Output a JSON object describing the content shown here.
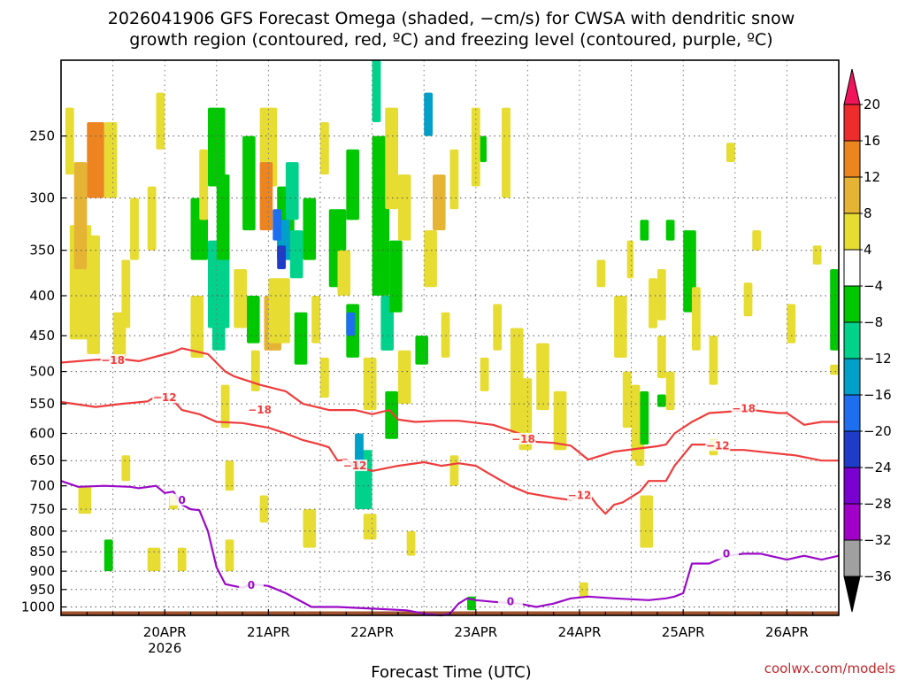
{
  "chart_data": {
    "type": "heatmap",
    "title_line1": "2026041906 GFS Forecast Omega (shaded, −cm/s) for CWSA with dendritic snow",
    "title_line2": "growth region (contoured, red, ºC) and freezing level (contoured, purple, ºC)",
    "xlabel": "Forecast Time (UTC)",
    "x_ticks": [
      {
        "label": "20APR",
        "sub": "2026",
        "t": 24
      },
      {
        "label": "21APR",
        "sub": "",
        "t": 48
      },
      {
        "label": "22APR",
        "sub": "",
        "t": 72
      },
      {
        "label": "23APR",
        "sub": "",
        "t": 96
      },
      {
        "label": "24APR",
        "sub": "",
        "t": 120
      },
      {
        "label": "25APR",
        "sub": "",
        "t": 144
      },
      {
        "label": "26APR",
        "sub": "",
        "t": 168
      }
    ],
    "xlim": [
      0,
      180
    ],
    "y_ticks": [
      250,
      300,
      350,
      400,
      450,
      500,
      550,
      600,
      650,
      700,
      750,
      800,
      850,
      900,
      950,
      1000
    ],
    "ylim": [
      200,
      1025
    ],
    "y_scale": "log",
    "grid": true,
    "colorbar": {
      "labels": [
        "20",
        "16",
        "12",
        "8",
        "4",
        "−4",
        "−8",
        "−12",
        "−16",
        "−20",
        "−24",
        "−28",
        "−32",
        "−36"
      ],
      "colors": [
        "#f0145a",
        "#ee2c2c",
        "#ec8420",
        "#e6b434",
        "#e6dc32",
        "#ffffff",
        "#00c800",
        "#00d28c",
        "#00a0c8",
        "#1e6ef0",
        "#1e3cc8",
        "#7a00d0",
        "#a000c8",
        "#a0a0a0",
        "#000000"
      ]
    },
    "contour_labels": {
      "cold": "−18",
      "warm": "−12",
      "freezing": "0"
    },
    "isotherm_m18": [
      [
        0,
        487
      ],
      [
        8,
        483
      ],
      [
        14,
        482
      ],
      [
        18,
        485
      ],
      [
        26,
        472
      ],
      [
        28,
        467
      ],
      [
        34,
        475
      ],
      [
        38,
        500
      ],
      [
        40,
        507
      ],
      [
        46,
        520
      ],
      [
        52,
        530
      ],
      [
        56,
        550
      ],
      [
        62,
        560
      ],
      [
        68,
        560
      ],
      [
        72,
        567
      ],
      [
        76,
        560
      ],
      [
        78,
        576
      ],
      [
        82,
        580
      ],
      [
        88,
        578
      ],
      [
        92,
        578
      ],
      [
        100,
        585
      ],
      [
        106,
        600
      ],
      [
        110,
        615
      ],
      [
        114,
        617
      ],
      [
        118,
        622
      ],
      [
        122,
        648
      ],
      [
        128,
        633
      ],
      [
        134,
        627
      ],
      [
        138,
        623
      ],
      [
        140,
        620
      ],
      [
        142,
        600
      ],
      [
        146,
        580
      ],
      [
        150,
        565
      ],
      [
        160,
        560
      ],
      [
        166,
        565
      ],
      [
        168,
        565
      ],
      [
        172,
        585
      ],
      [
        176,
        580
      ],
      [
        180,
        580
      ]
    ],
    "isotherm_m12": [
      [
        0,
        547
      ],
      [
        8,
        555
      ],
      [
        14,
        550
      ],
      [
        20,
        546
      ],
      [
        22,
        538
      ],
      [
        24,
        540
      ],
      [
        26,
        545
      ],
      [
        28,
        560
      ],
      [
        32,
        567
      ],
      [
        36,
        580
      ],
      [
        42,
        582
      ],
      [
        48,
        590
      ],
      [
        52,
        600
      ],
      [
        56,
        612
      ],
      [
        60,
        620
      ],
      [
        62,
        625
      ],
      [
        64,
        650
      ],
      [
        66,
        648
      ],
      [
        68,
        660
      ],
      [
        72,
        670
      ],
      [
        78,
        660
      ],
      [
        84,
        653
      ],
      [
        88,
        660
      ],
      [
        92,
        655
      ],
      [
        96,
        660
      ],
      [
        100,
        680
      ],
      [
        104,
        700
      ],
      [
        108,
        715
      ],
      [
        114,
        725
      ],
      [
        118,
        730
      ],
      [
        120,
        720
      ],
      [
        122,
        715
      ],
      [
        124,
        740
      ],
      [
        126,
        760
      ],
      [
        128,
        740
      ],
      [
        130,
        735
      ],
      [
        134,
        712
      ],
      [
        136,
        690
      ],
      [
        140,
        690
      ],
      [
        142,
        660
      ],
      [
        146,
        620
      ],
      [
        150,
        620
      ],
      [
        154,
        630
      ],
      [
        158,
        630
      ],
      [
        164,
        635
      ],
      [
        170,
        640
      ],
      [
        176,
        650
      ],
      [
        180,
        650
      ]
    ],
    "isotherm_0": [
      [
        0,
        690
      ],
      [
        4,
        702
      ],
      [
        10,
        700
      ],
      [
        16,
        702
      ],
      [
        18,
        705
      ],
      [
        22,
        700
      ],
      [
        24,
        715
      ],
      [
        26,
        712
      ],
      [
        28,
        740
      ],
      [
        30,
        750
      ],
      [
        32,
        752
      ],
      [
        34,
        800
      ],
      [
        36,
        890
      ],
      [
        38,
        935
      ],
      [
        40,
        940
      ],
      [
        42,
        945
      ],
      [
        44,
        935
      ],
      [
        48,
        940
      ],
      [
        52,
        960
      ],
      [
        58,
        1000
      ],
      [
        64,
        1000
      ],
      [
        72,
        1005
      ],
      [
        80,
        1010
      ],
      [
        84,
        1020
      ],
      [
        88,
        1025
      ],
      [
        90,
        1020
      ],
      [
        92,
        990
      ],
      [
        94,
        975
      ],
      [
        96,
        980
      ],
      [
        100,
        985
      ],
      [
        106,
        990
      ],
      [
        110,
        1000
      ],
      [
        114,
        990
      ],
      [
        118,
        975
      ],
      [
        122,
        970
      ],
      [
        128,
        975
      ],
      [
        136,
        980
      ],
      [
        140,
        975
      ],
      [
        142,
        970
      ],
      [
        144,
        960
      ],
      [
        146,
        880
      ],
      [
        150,
        880
      ],
      [
        154,
        860
      ],
      [
        158,
        855
      ],
      [
        162,
        855
      ],
      [
        164,
        860
      ],
      [
        168,
        870
      ],
      [
        172,
        860
      ],
      [
        176,
        870
      ],
      [
        180,
        860
      ]
    ],
    "omega_cells": [
      {
        "t": 2,
        "p": 325,
        "dt": 5,
        "dp": 130,
        "v": 6
      },
      {
        "t": 3,
        "p": 270,
        "dt": 3,
        "dp": 100,
        "v": 10
      },
      {
        "t": 6,
        "p": 240,
        "dt": 4,
        "dp": 60,
        "v": 14
      },
      {
        "t": 6,
        "p": 335,
        "dt": 3,
        "dp": 140,
        "v": 6
      },
      {
        "t": 10,
        "p": 240,
        "dt": 3,
        "dp": 60,
        "v": 6
      },
      {
        "t": 12,
        "p": 420,
        "dt": 3,
        "dp": 60,
        "v": 6
      },
      {
        "t": 14,
        "p": 360,
        "dt": 2,
        "dp": 80,
        "v": 6
      },
      {
        "t": 4,
        "p": 700,
        "dt": 3,
        "dp": 60,
        "v": 6
      },
      {
        "t": 10,
        "p": 820,
        "dt": 2,
        "dp": 80,
        "v": -6
      },
      {
        "t": 14,
        "p": 640,
        "dt": 2,
        "dp": 50,
        "v": 6
      },
      {
        "t": 20,
        "p": 840,
        "dt": 3,
        "dp": 60,
        "v": 6
      },
      {
        "t": 20,
        "p": 290,
        "dt": 2,
        "dp": 60,
        "v": 6
      },
      {
        "t": 22,
        "p": 220,
        "dt": 2,
        "dp": 40,
        "v": 6
      },
      {
        "t": 25,
        "p": 720,
        "dt": 2,
        "dp": 30,
        "v": 6
      },
      {
        "t": 27,
        "p": 840,
        "dt": 2,
        "dp": 60,
        "v": 6
      },
      {
        "t": 30,
        "p": 300,
        "dt": 4,
        "dp": 60,
        "v": -6
      },
      {
        "t": 30,
        "p": 400,
        "dt": 3,
        "dp": 80,
        "v": 6
      },
      {
        "t": 32,
        "p": 260,
        "dt": 2,
        "dp": 60,
        "v": 6
      },
      {
        "t": 34,
        "p": 230,
        "dt": 4,
        "dp": 60,
        "v": -6
      },
      {
        "t": 34,
        "p": 340,
        "dt": 5,
        "dp": 100,
        "v": -8
      },
      {
        "t": 35,
        "p": 410,
        "dt": 3,
        "dp": 60,
        "v": -10
      },
      {
        "t": 36,
        "p": 280,
        "dt": 3,
        "dp": 80,
        "v": -6
      },
      {
        "t": 37,
        "p": 520,
        "dt": 2,
        "dp": 70,
        "v": 6
      },
      {
        "t": 38,
        "p": 650,
        "dt": 2,
        "dp": 60,
        "v": 6
      },
      {
        "t": 38,
        "p": 820,
        "dt": 2,
        "dp": 80,
        "v": 6
      },
      {
        "t": 40,
        "p": 370,
        "dt": 3,
        "dp": 70,
        "v": 6
      },
      {
        "t": 42,
        "p": 250,
        "dt": 3,
        "dp": 80,
        "v": -6
      },
      {
        "t": 43,
        "p": 400,
        "dt": 3,
        "dp": 60,
        "v": -6
      },
      {
        "t": 44,
        "p": 470,
        "dt": 2,
        "dp": 60,
        "v": 6
      },
      {
        "t": 46,
        "p": 720,
        "dt": 2,
        "dp": 60,
        "v": 6
      },
      {
        "t": 46,
        "p": 230,
        "dt": 4,
        "dp": 60,
        "v": 6
      },
      {
        "t": 46,
        "p": 270,
        "dt": 3,
        "dp": 60,
        "v": 12
      },
      {
        "t": 47,
        "p": 400,
        "dt": 4,
        "dp": 70,
        "v": 8
      },
      {
        "t": 48,
        "p": 380,
        "dt": 5,
        "dp": 80,
        "v": 6
      },
      {
        "t": 50,
        "p": 290,
        "dt": 4,
        "dp": 70,
        "v": -6
      },
      {
        "t": 50,
        "p": 320,
        "dt": 3,
        "dp": 40,
        "v": -14
      },
      {
        "t": 50,
        "p": 345,
        "dt": 2,
        "dp": 25,
        "v": -22
      },
      {
        "t": 49,
        "p": 310,
        "dt": 2,
        "dp": 30,
        "v": -18
      },
      {
        "t": 52,
        "p": 270,
        "dt": 3,
        "dp": 50,
        "v": -8
      },
      {
        "t": 53,
        "p": 330,
        "dt": 3,
        "dp": 50,
        "v": -10
      },
      {
        "t": 54,
        "p": 420,
        "dt": 3,
        "dp": 70,
        "v": -6
      },
      {
        "t": 56,
        "p": 300,
        "dt": 3,
        "dp": 60,
        "v": -6
      },
      {
        "t": 56,
        "p": 750,
        "dt": 3,
        "dp": 90,
        "v": 6
      },
      {
        "t": 58,
        "p": 400,
        "dt": 2,
        "dp": 60,
        "v": 6
      },
      {
        "t": 60,
        "p": 240,
        "dt": 2,
        "dp": 40,
        "v": 6
      },
      {
        "t": 60,
        "p": 480,
        "dt": 2,
        "dp": 60,
        "v": 6
      },
      {
        "t": 62,
        "p": 310,
        "dt": 4,
        "dp": 80,
        "v": -6
      },
      {
        "t": 64,
        "p": 350,
        "dt": 3,
        "dp": 50,
        "v": 6
      },
      {
        "t": 66,
        "p": 410,
        "dt": 3,
        "dp": 70,
        "v": -6
      },
      {
        "t": 66,
        "p": 420,
        "dt": 2,
        "dp": 30,
        "v": -18
      },
      {
        "t": 66,
        "p": 260,
        "dt": 3,
        "dp": 60,
        "v": -6
      },
      {
        "t": 68,
        "p": 630,
        "dt": 4,
        "dp": 120,
        "v": -8
      },
      {
        "t": 68,
        "p": 600,
        "dt": 2,
        "dp": 60,
        "v": -12
      },
      {
        "t": 70,
        "p": 480,
        "dt": 3,
        "dp": 80,
        "v": 6
      },
      {
        "t": 70,
        "p": 760,
        "dt": 3,
        "dp": 60,
        "v": 6
      },
      {
        "t": 72,
        "p": 250,
        "dt": 4,
        "dp": 150,
        "v": -6
      },
      {
        "t": 72,
        "p": 200,
        "dt": 2,
        "dp": 40,
        "v": -10
      },
      {
        "t": 74,
        "p": 400,
        "dt": 3,
        "dp": 70,
        "v": -8
      },
      {
        "t": 75,
        "p": 530,
        "dt": 3,
        "dp": 80,
        "v": -6
      },
      {
        "t": 75,
        "p": 230,
        "dt": 3,
        "dp": 80,
        "v": 6
      },
      {
        "t": 76,
        "p": 340,
        "dt": 3,
        "dp": 80,
        "v": -6
      },
      {
        "t": 78,
        "p": 470,
        "dt": 3,
        "dp": 80,
        "v": 6
      },
      {
        "t": 78,
        "p": 280,
        "dt": 3,
        "dp": 60,
        "v": 6
      },
      {
        "t": 80,
        "p": 800,
        "dt": 2,
        "dp": 60,
        "v": 6
      },
      {
        "t": 82,
        "p": 450,
        "dt": 3,
        "dp": 40,
        "v": -6
      },
      {
        "t": 84,
        "p": 330,
        "dt": 3,
        "dp": 60,
        "v": 6
      },
      {
        "t": 84,
        "p": 220,
        "dt": 2,
        "dp": 30,
        "v": -14
      },
      {
        "t": 86,
        "p": 280,
        "dt": 3,
        "dp": 50,
        "v": 8
      },
      {
        "t": 88,
        "p": 420,
        "dt": 2,
        "dp": 60,
        "v": 6
      },
      {
        "t": 90,
        "p": 260,
        "dt": 2,
        "dp": 50,
        "v": 6
      },
      {
        "t": 90,
        "p": 640,
        "dt": 2,
        "dp": 60,
        "v": 6
      },
      {
        "t": 95,
        "p": 230,
        "dt": 2,
        "dp": 60,
        "v": 6
      },
      {
        "t": 94,
        "p": 970,
        "dt": 2,
        "dp": 40,
        "v": -6
      },
      {
        "t": 97,
        "p": 480,
        "dt": 2,
        "dp": 50,
        "v": 6
      },
      {
        "t": 97,
        "p": 250,
        "dt": 1.5,
        "dp": 20,
        "v": -6
      },
      {
        "t": 100,
        "p": 410,
        "dt": 2,
        "dp": 60,
        "v": 6
      },
      {
        "t": 102,
        "p": 230,
        "dt": 2,
        "dp": 70,
        "v": 6
      },
      {
        "t": 104,
        "p": 440,
        "dt": 3,
        "dp": 160,
        "v": 6
      },
      {
        "t": 106,
        "p": 510,
        "dt": 3,
        "dp": 120,
        "v": 6
      },
      {
        "t": 110,
        "p": 460,
        "dt": 3,
        "dp": 100,
        "v": 6
      },
      {
        "t": 114,
        "p": 530,
        "dt": 3,
        "dp": 100,
        "v": 6
      },
      {
        "t": 120,
        "p": 930,
        "dt": 2,
        "dp": 40,
        "v": 6
      },
      {
        "t": 124,
        "p": 360,
        "dt": 2,
        "dp": 30,
        "v": 6
      },
      {
        "t": 128,
        "p": 400,
        "dt": 3,
        "dp": 80,
        "v": 6
      },
      {
        "t": 130,
        "p": 500,
        "dt": 2,
        "dp": 90,
        "v": 6
      },
      {
        "t": 131,
        "p": 340,
        "dt": 1.5,
        "dp": 40,
        "v": 6
      },
      {
        "t": 132,
        "p": 520,
        "dt": 2,
        "dp": 130,
        "v": 6
      },
      {
        "t": 133,
        "p": 600,
        "dt": 2,
        "dp": 60,
        "v": 6
      },
      {
        "t": 134,
        "p": 530,
        "dt": 2,
        "dp": 90,
        "v": -6
      },
      {
        "t": 134,
        "p": 720,
        "dt": 3,
        "dp": 120,
        "v": 6
      },
      {
        "t": 134,
        "p": 320,
        "dt": 2,
        "dp": 20,
        "v": -6
      },
      {
        "t": 136,
        "p": 380,
        "dt": 2,
        "dp": 60,
        "v": 6
      },
      {
        "t": 138,
        "p": 370,
        "dt": 2,
        "dp": 60,
        "v": 6
      },
      {
        "t": 138,
        "p": 450,
        "dt": 2,
        "dp": 60,
        "v": 6
      },
      {
        "t": 140,
        "p": 500,
        "dt": 2,
        "dp": 60,
        "v": 6
      },
      {
        "t": 138,
        "p": 535,
        "dt": 2,
        "dp": 20,
        "v": -6
      },
      {
        "t": 144,
        "p": 330,
        "dt": 3,
        "dp": 90,
        "v": -6
      },
      {
        "t": 146,
        "p": 390,
        "dt": 2,
        "dp": 80,
        "v": 6
      },
      {
        "t": 150,
        "p": 450,
        "dt": 2,
        "dp": 70,
        "v": 6
      },
      {
        "t": 150,
        "p": 610,
        "dt": 2,
        "dp": 30,
        "v": 6
      },
      {
        "t": 154,
        "p": 255,
        "dt": 2,
        "dp": 15,
        "v": 6
      },
      {
        "t": 158,
        "p": 385,
        "dt": 2,
        "dp": 40,
        "v": 6
      },
      {
        "t": 160,
        "p": 330,
        "dt": 2,
        "dp": 20,
        "v": 6
      },
      {
        "t": 168,
        "p": 410,
        "dt": 2,
        "dp": 50,
        "v": 6
      },
      {
        "t": 174,
        "p": 345,
        "dt": 2,
        "dp": 20,
        "v": 6
      },
      {
        "t": 178,
        "p": 370,
        "dt": 2,
        "dp": 100,
        "v": -6
      },
      {
        "t": 178,
        "p": 490,
        "dt": 2,
        "dp": 15,
        "v": 6
      },
      {
        "t": 140,
        "p": 320,
        "dt": 2,
        "dp": 20,
        "v": -6
      },
      {
        "t": 1,
        "p": 230,
        "dt": 2,
        "dp": 50,
        "v": 6
      },
      {
        "t": 16,
        "p": 300,
        "dt": 2,
        "dp": 60,
        "v": 6
      }
    ],
    "ground_level": 1013,
    "ground_color": "#a0522d",
    "credit": "coolwx.com/models"
  }
}
